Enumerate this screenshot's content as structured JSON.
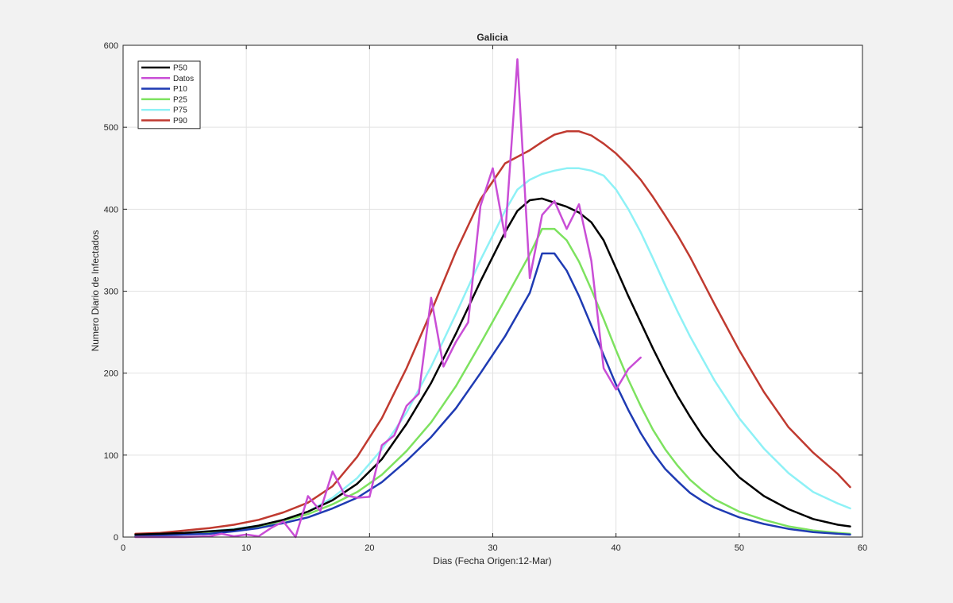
{
  "chart_data": {
    "type": "line",
    "title": "Galicia",
    "xlabel": "Dias (Fecha Origen:12-Mar)",
    "ylabel": "Numero Diario de Infectados",
    "xlim": [
      0,
      60
    ],
    "ylim": [
      0,
      600
    ],
    "xticks": [
      0,
      10,
      20,
      30,
      40,
      50,
      60
    ],
    "yticks": [
      0,
      100,
      200,
      300,
      400,
      500,
      600
    ],
    "grid": true,
    "legend_position": "top-left",
    "colors": {
      "background": "#f2f2f2",
      "plot_area": "#ffffff",
      "grid": "#e2e2e2",
      "axis": "#262626"
    },
    "series": [
      {
        "name": "P50",
        "color": "#000000",
        "x": [
          1,
          3,
          5,
          7,
          9,
          11,
          13,
          15,
          17,
          19,
          21,
          23,
          25,
          27,
          29,
          31,
          32,
          33,
          34,
          35,
          36,
          37,
          38,
          39,
          40,
          41,
          42,
          43,
          44,
          45,
          46,
          47,
          48,
          50,
          52,
          54,
          56,
          58,
          59
        ],
        "y": [
          3,
          4,
          5,
          7,
          9,
          14,
          21,
          31,
          45,
          65,
          95,
          138,
          188,
          248,
          312,
          372,
          398,
          411,
          413,
          408,
          403,
          396,
          384,
          362,
          328,
          294,
          262,
          230,
          200,
          172,
          147,
          124,
          105,
          73,
          50,
          34,
          22,
          15,
          13
        ]
      },
      {
        "name": "Datos",
        "color": "#c94ed6",
        "x": [
          1,
          3,
          5,
          7,
          8,
          9,
          10,
          11,
          12,
          13,
          14,
          15,
          16,
          17,
          18,
          19,
          20,
          21,
          22,
          23,
          24,
          25,
          26,
          27,
          28,
          29,
          30,
          31,
          32,
          33,
          34,
          35,
          36,
          37,
          38,
          39,
          40,
          41,
          42
        ],
        "y": [
          0,
          0,
          0,
          1,
          4,
          1,
          3,
          1,
          11,
          19,
          0,
          50,
          32,
          80,
          51,
          48,
          49,
          112,
          124,
          160,
          175,
          292,
          208,
          238,
          262,
          404,
          450,
          366,
          583,
          316,
          393,
          410,
          376,
          406,
          337,
          206,
          180,
          205,
          219
        ]
      },
      {
        "name": "P10",
        "color": "#1f3bb3",
        "x": [
          1,
          3,
          5,
          7,
          9,
          11,
          13,
          15,
          17,
          19,
          21,
          23,
          25,
          27,
          29,
          31,
          33,
          34,
          35,
          36,
          37,
          38,
          39,
          40,
          41,
          42,
          43,
          44,
          45,
          46,
          47,
          48,
          50,
          52,
          54,
          56,
          58,
          59
        ],
        "y": [
          1,
          2,
          3,
          4,
          7,
          11,
          17,
          24,
          35,
          48,
          67,
          93,
          122,
          157,
          200,
          245,
          298,
          346,
          346,
          325,
          294,
          258,
          222,
          186,
          155,
          127,
          103,
          83,
          68,
          54,
          44,
          36,
          24,
          16,
          10,
          6,
          4,
          3
        ]
      },
      {
        "name": "P25",
        "color": "#7de25f",
        "x": [
          1,
          3,
          5,
          7,
          9,
          11,
          13,
          15,
          17,
          19,
          21,
          23,
          25,
          27,
          29,
          31,
          33,
          34,
          35,
          36,
          37,
          38,
          39,
          40,
          41,
          42,
          43,
          44,
          45,
          46,
          47,
          48,
          50,
          52,
          54,
          56,
          58,
          59
        ],
        "y": [
          1,
          2,
          4,
          6,
          9,
          13,
          20,
          28,
          40,
          55,
          76,
          105,
          140,
          184,
          236,
          290,
          345,
          376,
          376,
          362,
          336,
          302,
          266,
          228,
          192,
          160,
          131,
          107,
          87,
          70,
          57,
          46,
          31,
          21,
          13,
          8,
          5,
          4
        ]
      },
      {
        "name": "P75",
        "color": "#8ef1f6",
        "x": [
          1,
          3,
          5,
          7,
          9,
          11,
          13,
          15,
          17,
          19,
          21,
          23,
          25,
          27,
          29,
          31,
          32,
          33,
          34,
          35,
          36,
          37,
          38,
          39,
          40,
          41,
          42,
          43,
          44,
          45,
          46,
          47,
          48,
          50,
          52,
          54,
          56,
          58,
          59
        ],
        "y": [
          2,
          3,
          5,
          7,
          10,
          14,
          21,
          31,
          48,
          72,
          107,
          152,
          208,
          272,
          338,
          398,
          424,
          436,
          443,
          447,
          450,
          450,
          447,
          441,
          424,
          400,
          372,
          340,
          307,
          275,
          245,
          218,
          191,
          145,
          108,
          78,
          55,
          41,
          35
        ]
      },
      {
        "name": "P90",
        "color": "#c03a30",
        "x": [
          1,
          3,
          5,
          7,
          9,
          11,
          13,
          15,
          17,
          19,
          21,
          23,
          25,
          27,
          29,
          31,
          33,
          34,
          35,
          36,
          37,
          38,
          39,
          40,
          41,
          42,
          43,
          44,
          45,
          46,
          47,
          48,
          50,
          52,
          54,
          56,
          58,
          59
        ],
        "y": [
          4,
          5,
          8,
          11,
          15,
          21,
          30,
          42,
          62,
          98,
          145,
          206,
          275,
          348,
          412,
          456,
          472,
          482,
          491,
          495,
          495,
          490,
          480,
          468,
          453,
          436,
          415,
          392,
          368,
          342,
          313,
          284,
          228,
          177,
          134,
          103,
          77,
          61
        ]
      }
    ]
  }
}
